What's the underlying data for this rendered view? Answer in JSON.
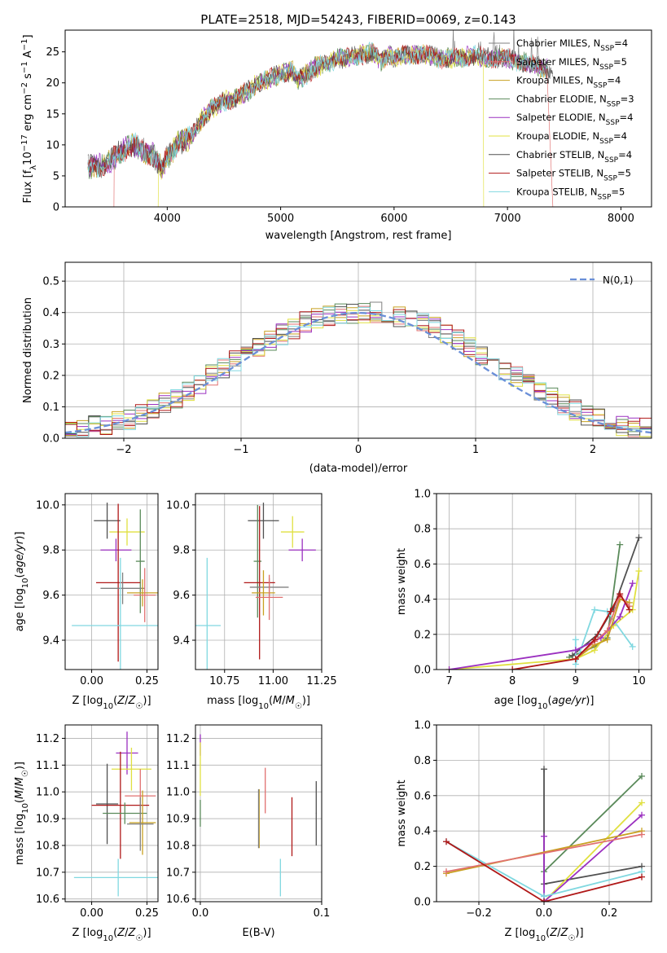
{
  "figure": {
    "title": "PLATE=2518, MJD=54243, FIBERID=0069, z=0.143"
  },
  "chart_data": [
    {
      "id": "spectrum",
      "type": "line",
      "xlabel": "wavelength [Angstrom, rest frame]",
      "ylabel": "Flux [f_λ10^-17 erg cm^-2 s^-1 A^-1]",
      "xlim": [
        3100,
        8270
      ],
      "ylim": [
        0,
        28.5
      ],
      "xticks": [
        "4000",
        "5000",
        "6000",
        "7000",
        "8000"
      ],
      "yticks": [
        "0",
        "5",
        "10",
        "15",
        "20",
        "25"
      ],
      "grid": false,
      "legend_position": "top-right",
      "continuum_points": [
        [
          3300,
          6.5
        ],
        [
          3450,
          6.8
        ],
        [
          3600,
          9
        ],
        [
          3700,
          10
        ],
        [
          3800,
          9
        ],
        [
          3900,
          8
        ],
        [
          3950,
          6
        ],
        [
          4000,
          8
        ],
        [
          4100,
          10.5
        ],
        [
          4200,
          11
        ],
        [
          4300,
          14
        ],
        [
          4400,
          16
        ],
        [
          4500,
          17
        ],
        [
          4600,
          17.5
        ],
        [
          4700,
          18.5
        ],
        [
          4800,
          20
        ],
        [
          4900,
          20.5
        ],
        [
          5000,
          21.5
        ],
        [
          5100,
          22
        ],
        [
          5150,
          20.5
        ],
        [
          5200,
          21
        ],
        [
          5300,
          22.5
        ],
        [
          5400,
          23
        ],
        [
          5500,
          24
        ],
        [
          5600,
          24
        ],
        [
          5700,
          24.5
        ],
        [
          5800,
          25
        ],
        [
          5880,
          23.5
        ],
        [
          5950,
          24.5
        ],
        [
          6000,
          24
        ],
        [
          6100,
          24.5
        ],
        [
          6200,
          24.5
        ],
        [
          6300,
          24.5
        ],
        [
          6400,
          24
        ],
        [
          6500,
          24
        ],
        [
          6600,
          24
        ],
        [
          6700,
          24.5
        ],
        [
          6800,
          24
        ],
        [
          6900,
          24
        ],
        [
          7000,
          24
        ],
        [
          7100,
          23.5
        ],
        [
          7200,
          23
        ],
        [
          7300,
          22.5
        ],
        [
          7400,
          22
        ]
      ],
      "series": [
        {
          "name": "Chabrier MILES, N_SSP=4",
          "color": "#808080"
        },
        {
          "name": "Salpeter MILES, N_SSP=5",
          "color": "#e07070"
        },
        {
          "name": "Kroupa MILES, N_SSP=4",
          "color": "#c8a020"
        },
        {
          "name": "Chabrier ELODIE, N_SSP=3",
          "color": "#5a8a5a"
        },
        {
          "name": "Salpeter ELODIE, N_SSP=4",
          "color": "#9b30c0"
        },
        {
          "name": "Kroupa ELODIE, N_SSP=4",
          "color": "#e0e040"
        },
        {
          "name": "Chabrier STELIB, N_SSP=4",
          "color": "#505050"
        },
        {
          "name": "Salpeter STELIB, N_SSP=5",
          "color": "#b01818"
        },
        {
          "name": "Kroupa STELIB, N_SSP=5",
          "color": "#80d8e0"
        }
      ],
      "range_limits": [
        {
          "name": "Salpeter MILES, N_SSP=5",
          "x": [
            3530,
            7400
          ]
        },
        {
          "name": "Kroupa ELODIE, N_SSP=4",
          "x": [
            3920,
            6790
          ]
        }
      ]
    },
    {
      "id": "residuals",
      "type": "line",
      "xlabel": "(data-model)/error",
      "ylabel": "Normed distribution",
      "xlim": [
        -2.5,
        2.5
      ],
      "ylim": [
        0,
        0.56
      ],
      "xticks": [
        "−2",
        "−1",
        "0",
        "1",
        "2"
      ],
      "yticks": [
        "0.0",
        "0.1",
        "0.2",
        "0.3",
        "0.4",
        "0.5"
      ],
      "grid": true,
      "legend_position": "top-right",
      "legend_label": "N(0,1)",
      "bin_width": 0.1,
      "histogram_values": [
        0.025,
        0.03,
        0.04,
        0.045,
        0.05,
        0.06,
        0.075,
        0.09,
        0.11,
        0.13,
        0.15,
        0.175,
        0.2,
        0.22,
        0.245,
        0.265,
        0.29,
        0.31,
        0.33,
        0.35,
        0.37,
        0.38,
        0.39,
        0.395,
        0.4,
        0.4,
        0.4,
        0.395,
        0.39,
        0.38,
        0.37,
        0.35,
        0.33,
        0.31,
        0.29,
        0.265,
        0.245,
        0.22,
        0.2,
        0.175,
        0.15,
        0.13,
        0.11,
        0.09,
        0.075,
        0.06,
        0.05,
        0.04,
        0.035,
        0.03
      ]
    },
    {
      "id": "age-vs-Z",
      "type": "scatter",
      "xlabel": "Z [log10(Z/Z☉)]",
      "ylabel": "age [log10(age/yr)]",
      "xlim": [
        -0.12,
        0.3
      ],
      "ylim": [
        9.27,
        10.05
      ],
      "xticks": [
        "0.00",
        "0.25"
      ],
      "yticks": [
        "9.4",
        "9.6",
        "9.8",
        "10.0"
      ],
      "points": [
        {
          "x": 0.07,
          "y": 9.93,
          "xerr": 0.06,
          "yerr": 0.08,
          "color": "#505050"
        },
        {
          "x": 0.16,
          "y": 9.88,
          "xerr": 0.08,
          "yerr": 0.06,
          "color": "#e0e040"
        },
        {
          "x": 0.11,
          "y": 9.8,
          "xerr": 0.07,
          "yerr": 0.05,
          "color": "#9b30c0"
        },
        {
          "x": 0.22,
          "y": 9.75,
          "xerr": 0.02,
          "yerr": 0.23,
          "color": "#5a8a5a"
        },
        {
          "x": 0.12,
          "y": 9.655,
          "xerr": 0.1,
          "yerr": 0.35,
          "color": "#b01818"
        },
        {
          "x": 0.14,
          "y": 9.63,
          "xerr": 0.1,
          "yerr": 0.07,
          "color": "#808080"
        },
        {
          "x": 0.23,
          "y": 9.61,
          "xerr": 0.07,
          "yerr": 0.06,
          "color": "#c8a020"
        },
        {
          "x": 0.24,
          "y": 9.6,
          "xerr": 0.05,
          "yerr": 0.12,
          "color": "#e07070"
        },
        {
          "x": 0.13,
          "y": 9.465,
          "xerr": 0.22,
          "yerr": 0.3,
          "color": "#80d8e0"
        }
      ]
    },
    {
      "id": "age-vs-mass",
      "type": "scatter",
      "xlabel": "mass [log10(M/M☉)]",
      "ylabel": "",
      "xlim": [
        10.6,
        11.25
      ],
      "ylim": [
        9.27,
        10.05
      ],
      "xticks": [
        "10.75",
        "11.00",
        "11.25"
      ],
      "yticks": [
        "9.4",
        "9.6",
        "9.8",
        "10.0"
      ],
      "points": [
        {
          "x": 10.95,
          "y": 9.93,
          "xerr": 0.08,
          "yerr": 0.08,
          "color": "#505050"
        },
        {
          "x": 11.1,
          "y": 9.88,
          "xerr": 0.06,
          "yerr": 0.07,
          "color": "#e0e040"
        },
        {
          "x": 11.15,
          "y": 9.8,
          "xerr": 0.07,
          "yerr": 0.05,
          "color": "#9b30c0"
        },
        {
          "x": 10.92,
          "y": 9.75,
          "xerr": 0.02,
          "yerr": 0.25,
          "color": "#5a8a5a"
        },
        {
          "x": 10.93,
          "y": 9.655,
          "xerr": 0.08,
          "yerr": 0.34,
          "color": "#b01818"
        },
        {
          "x": 10.98,
          "y": 9.635,
          "xerr": 0.1,
          "yerr": 0.04,
          "color": "#808080"
        },
        {
          "x": 10.95,
          "y": 9.61,
          "xerr": 0.06,
          "yerr": 0.1,
          "color": "#c8a020"
        },
        {
          "x": 10.98,
          "y": 9.59,
          "xerr": 0.07,
          "yerr": 0.1,
          "color": "#e07070"
        },
        {
          "x": 10.66,
          "y": 9.465,
          "xerr": 0.07,
          "yerr": 0.3,
          "color": "#80d8e0"
        }
      ]
    },
    {
      "id": "weight-vs-age",
      "type": "line",
      "xlabel": "age [log10(age/yr)]",
      "ylabel": "mass weight",
      "xlim": [
        6.8,
        10.2
      ],
      "ylim": [
        0,
        1
      ],
      "xticks": [
        "7",
        "8",
        "9",
        "10"
      ],
      "yticks": [
        "0.0",
        "0.2",
        "0.4",
        "0.6",
        "0.8",
        "1.0"
      ],
      "grid": true,
      "series": [
        {
          "color": "#5a8a5a",
          "points": [
            [
              8.9,
              0.07
            ],
            [
              9.3,
              0.13
            ],
            [
              9.5,
              0.18
            ],
            [
              9.7,
              0.71
            ]
          ]
        },
        {
          "color": "#505050",
          "points": [
            [
              8.95,
              0.08
            ],
            [
              9.35,
              0.2
            ],
            [
              9.6,
              0.35
            ],
            [
              10.0,
              0.75
            ]
          ]
        },
        {
          "color": "#e0e040",
          "points": [
            [
              7.0,
              0.0
            ],
            [
              9.0,
              0.06
            ],
            [
              9.3,
              0.11
            ],
            [
              9.6,
              0.25
            ],
            [
              9.9,
              0.34
            ],
            [
              10.0,
              0.56
            ]
          ]
        },
        {
          "color": "#80d8e0",
          "points": [
            [
              9.0,
              0.17
            ],
            [
              9.0,
              0.03
            ],
            [
              9.3,
              0.34
            ],
            [
              9.5,
              0.33
            ],
            [
              9.9,
              0.13
            ]
          ]
        },
        {
          "color": "#9b30c0",
          "points": [
            [
              7.0,
              0.0
            ],
            [
              9.0,
              0.11
            ],
            [
              9.4,
              0.18
            ],
            [
              9.7,
              0.3
            ],
            [
              9.9,
              0.49
            ]
          ]
        },
        {
          "color": "#c8a020",
          "points": [
            [
              9.0,
              0.06
            ],
            [
              9.3,
              0.14
            ],
            [
              9.5,
              0.17
            ],
            [
              9.7,
              0.4
            ],
            [
              9.85,
              0.38
            ]
          ]
        },
        {
          "color": "#e07070",
          "points": [
            [
              9.0,
              0.06
            ],
            [
              9.3,
              0.16
            ],
            [
              9.5,
              0.22
            ],
            [
              9.7,
              0.42
            ],
            [
              9.85,
              0.36
            ]
          ]
        },
        {
          "color": "#b01818",
          "points": [
            [
              8.0,
              0.0
            ],
            [
              9.0,
              0.06
            ],
            [
              9.3,
              0.17
            ],
            [
              9.55,
              0.33
            ],
            [
              9.7,
              0.43
            ],
            [
              9.85,
              0.34
            ]
          ]
        }
      ]
    },
    {
      "id": "mass-vs-Z",
      "type": "scatter",
      "xlabel": "Z [log10(Z/Z☉)]",
      "ylabel": "mass [log10(M/M☉)]",
      "xlim": [
        -0.12,
        0.3
      ],
      "ylim": [
        10.59,
        11.25
      ],
      "xticks": [
        "0.00",
        "0.25"
      ],
      "yticks": [
        "10.6",
        "10.7",
        "10.8",
        "10.9",
        "11.0",
        "11.1",
        "11.2"
      ],
      "points": [
        {
          "x": 0.16,
          "y": 11.145,
          "xerr": 0.05,
          "yerr": 0.08,
          "color": "#9b30c0"
        },
        {
          "x": 0.18,
          "y": 11.085,
          "xerr": 0.09,
          "yerr": 0.08,
          "color": "#e0e040"
        },
        {
          "x": 0.22,
          "y": 10.985,
          "xerr": 0.07,
          "yerr": 0.1,
          "color": "#e07070"
        },
        {
          "x": 0.07,
          "y": 10.955,
          "xerr": 0.05,
          "yerr": 0.15,
          "color": "#505050"
        },
        {
          "x": 0.13,
          "y": 10.95,
          "xerr": 0.13,
          "yerr": 0.2,
          "color": "#b01818"
        },
        {
          "x": 0.15,
          "y": 10.92,
          "xerr": 0.1,
          "yerr": 0.04,
          "color": "#5a8a5a"
        },
        {
          "x": 0.23,
          "y": 10.885,
          "xerr": 0.06,
          "yerr": 0.12,
          "color": "#c8a020"
        },
        {
          "x": 0.22,
          "y": 10.88,
          "xerr": 0.06,
          "yerr": 0.1,
          "color": "#808080"
        },
        {
          "x": 0.12,
          "y": 10.68,
          "xerr": 0.2,
          "yerr": 0.07,
          "color": "#80d8e0"
        }
      ]
    },
    {
      "id": "mass-vs-ebv",
      "type": "scatter",
      "xlabel": "E(B-V)",
      "ylabel": "",
      "xlim": [
        -0.004,
        0.1
      ],
      "ylim": [
        10.59,
        11.25
      ],
      "xticks": [
        "0.0",
        "0.1"
      ],
      "yticks": [
        "10.6",
        "10.7",
        "10.8",
        "10.9",
        "11.0",
        "11.1",
        "11.2"
      ],
      "points": [
        {
          "x": 0.0,
          "y": 11.175,
          "yerr": 0.04,
          "color": "#9b30c0"
        },
        {
          "x": 0.0,
          "y": 11.085,
          "yerr": 0.1,
          "color": "#e0e040"
        },
        {
          "x": 0.0,
          "y": 10.92,
          "yerr": 0.05,
          "color": "#5a8a5a"
        },
        {
          "x": 0.0535,
          "y": 11.005,
          "yerr": 0.085,
          "color": "#e07070"
        },
        {
          "x": 0.0485,
          "y": 10.9,
          "yerr": 0.11,
          "color": "#c8a020"
        },
        {
          "x": 0.048,
          "y": 10.9,
          "yerr": 0.11,
          "color": "#808080"
        },
        {
          "x": 0.0755,
          "y": 10.87,
          "yerr": 0.11,
          "color": "#b01818"
        },
        {
          "x": 0.0955,
          "y": 10.92,
          "yerr": 0.12,
          "color": "#505050"
        },
        {
          "x": 0.066,
          "y": 10.68,
          "yerr": 0.07,
          "color": "#80d8e0"
        }
      ]
    },
    {
      "id": "weight-vs-Z",
      "type": "line",
      "xlabel": "Z [log10(Z/Z☉)]",
      "ylabel": "mass weight",
      "xlim": [
        -0.33,
        0.33
      ],
      "ylim": [
        0,
        1
      ],
      "xticks": [
        "−0.2",
        "0.0",
        "0.2"
      ],
      "yticks": [
        "0.0",
        "0.2",
        "0.4",
        "0.6",
        "0.8",
        "1.0"
      ],
      "grid": true,
      "series": [
        {
          "color": "#505050",
          "points": [
            [
              0.0,
              0.75
            ],
            [
              0.0,
              0.1
            ],
            [
              0.3,
              0.2
            ]
          ]
        },
        {
          "color": "#5a8a5a",
          "points": [
            [
              0.0,
              0.17
            ],
            [
              0.3,
              0.71
            ]
          ]
        },
        {
          "color": "#e0e040",
          "points": [
            [
              0.0,
              0.0
            ],
            [
              0.3,
              0.56
            ]
          ]
        },
        {
          "color": "#9b30c0",
          "points": [
            [
              0.0,
              0.37
            ],
            [
              0.0,
              0.0
            ],
            [
              0.3,
              0.49
            ]
          ]
        },
        {
          "color": "#80d8e0",
          "points": [
            [
              -0.3,
              0.34
            ],
            [
              0.0,
              0.03
            ],
            [
              0.3,
              0.17
            ]
          ]
        },
        {
          "color": "#c8a020",
          "points": [
            [
              -0.3,
              0.16
            ],
            [
              0.3,
              0.4
            ]
          ]
        },
        {
          "color": "#e07070",
          "points": [
            [
              -0.3,
              0.17
            ],
            [
              0.3,
              0.38
            ]
          ]
        },
        {
          "color": "#b01818",
          "points": [
            [
              -0.3,
              0.34
            ],
            [
              0.0,
              0.0
            ],
            [
              0.3,
              0.14
            ]
          ]
        }
      ]
    }
  ]
}
